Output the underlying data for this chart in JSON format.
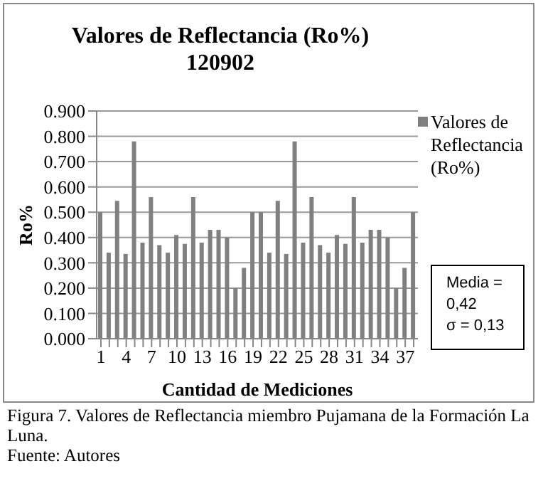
{
  "chart_data": {
    "type": "bar",
    "title": "Valores de Reflectancia (Ro%)\n120902",
    "xlabel": "Cantidad de Mediciones",
    "ylabel": "Ro%",
    "categories": [
      "1",
      null,
      null,
      "4",
      null,
      null,
      "7",
      null,
      null,
      "10",
      null,
      null,
      "13",
      null,
      null,
      "16",
      null,
      null,
      "19",
      null,
      null,
      "22",
      null,
      null,
      "25",
      null,
      null,
      "28",
      null,
      null,
      "31",
      null,
      null,
      "34",
      null,
      null,
      "37",
      null
    ],
    "series": [
      {
        "name": "Valores de Reflectancia (Ro%)",
        "color": "#808080",
        "values": [
          0.5,
          0.34,
          0.545,
          0.335,
          0.78,
          0.38,
          0.56,
          0.37,
          0.34,
          0.41,
          0.375,
          0.56,
          0.38,
          0.43,
          0.43,
          0.4,
          0.2,
          0.28,
          0.5,
          0.5,
          0.34,
          0.545,
          0.335,
          0.78,
          0.38,
          0.56,
          0.37,
          0.34,
          0.41,
          0.375,
          0.56,
          0.38,
          0.43,
          0.43,
          0.4,
          0.2,
          0.28,
          0.5
        ]
      }
    ],
    "ylim": [
      0,
      0.9
    ],
    "yticks": [
      {
        "value": 0,
        "label": "0.000"
      },
      {
        "value": 0.1,
        "label": "0.100"
      },
      {
        "value": 0.2,
        "label": "0.200"
      },
      {
        "value": 0.3,
        "label": "0.300"
      },
      {
        "value": 0.4,
        "label": "0.400"
      },
      {
        "value": 0.5,
        "label": "0.500"
      },
      {
        "value": 0.6,
        "label": "0.600"
      },
      {
        "value": 0.7,
        "label": "0.700"
      },
      {
        "value": 0.8,
        "label": "0.800"
      },
      {
        "value": 0.9,
        "label": "0.900"
      }
    ],
    "grid": "y",
    "legend": "right",
    "annotations": [
      "Media =\n0,42\nσ = 0,13",
      "Figura 7. Valores de Reflectancia miembro Pujamana de la Formación La Luna.",
      "Fuente: Autores"
    ]
  }
}
